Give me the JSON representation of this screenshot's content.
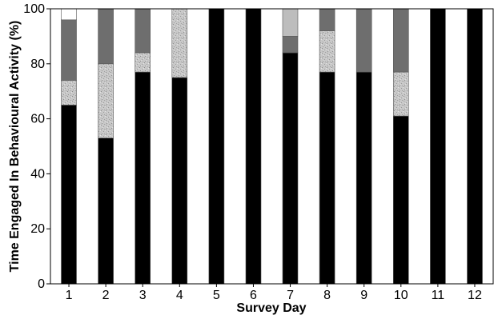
{
  "chart_data": {
    "type": "bar",
    "stacked": true,
    "xlabel": "Survey Day",
    "ylabel": "Time Engaged In Behavioural Activity (%)",
    "categories": [
      "1",
      "2",
      "3",
      "4",
      "5",
      "6",
      "7",
      "8",
      "9",
      "10",
      "11",
      "12"
    ],
    "ylim": [
      0,
      100
    ],
    "yticks": [
      0,
      20,
      40,
      60,
      80,
      100
    ],
    "grid": false,
    "legend": "none",
    "series": [
      {
        "color": "#000000",
        "pattern": "solid",
        "values": [
          65,
          53,
          77,
          75,
          100,
          100,
          84,
          77,
          77,
          61,
          100,
          100
        ]
      },
      {
        "color": "#cfcfcf",
        "pattern": "speckled",
        "values": [
          9,
          27,
          7,
          25,
          0,
          0,
          0,
          15,
          0,
          16,
          0,
          0
        ]
      },
      {
        "color": "#6e6e6e",
        "pattern": "solid",
        "values": [
          22,
          20,
          16,
          0,
          0,
          0,
          6,
          8,
          23,
          23,
          0,
          0
        ]
      },
      {
        "color": "#bdbdbd",
        "pattern": "solid",
        "values": [
          0,
          0,
          0,
          0,
          0,
          0,
          10,
          0,
          0,
          0,
          0,
          0
        ]
      },
      {
        "color": "#ffffff",
        "pattern": "solid",
        "values": [
          4,
          0,
          0,
          0,
          0,
          0,
          0,
          0,
          0,
          0,
          0,
          0
        ]
      }
    ]
  }
}
